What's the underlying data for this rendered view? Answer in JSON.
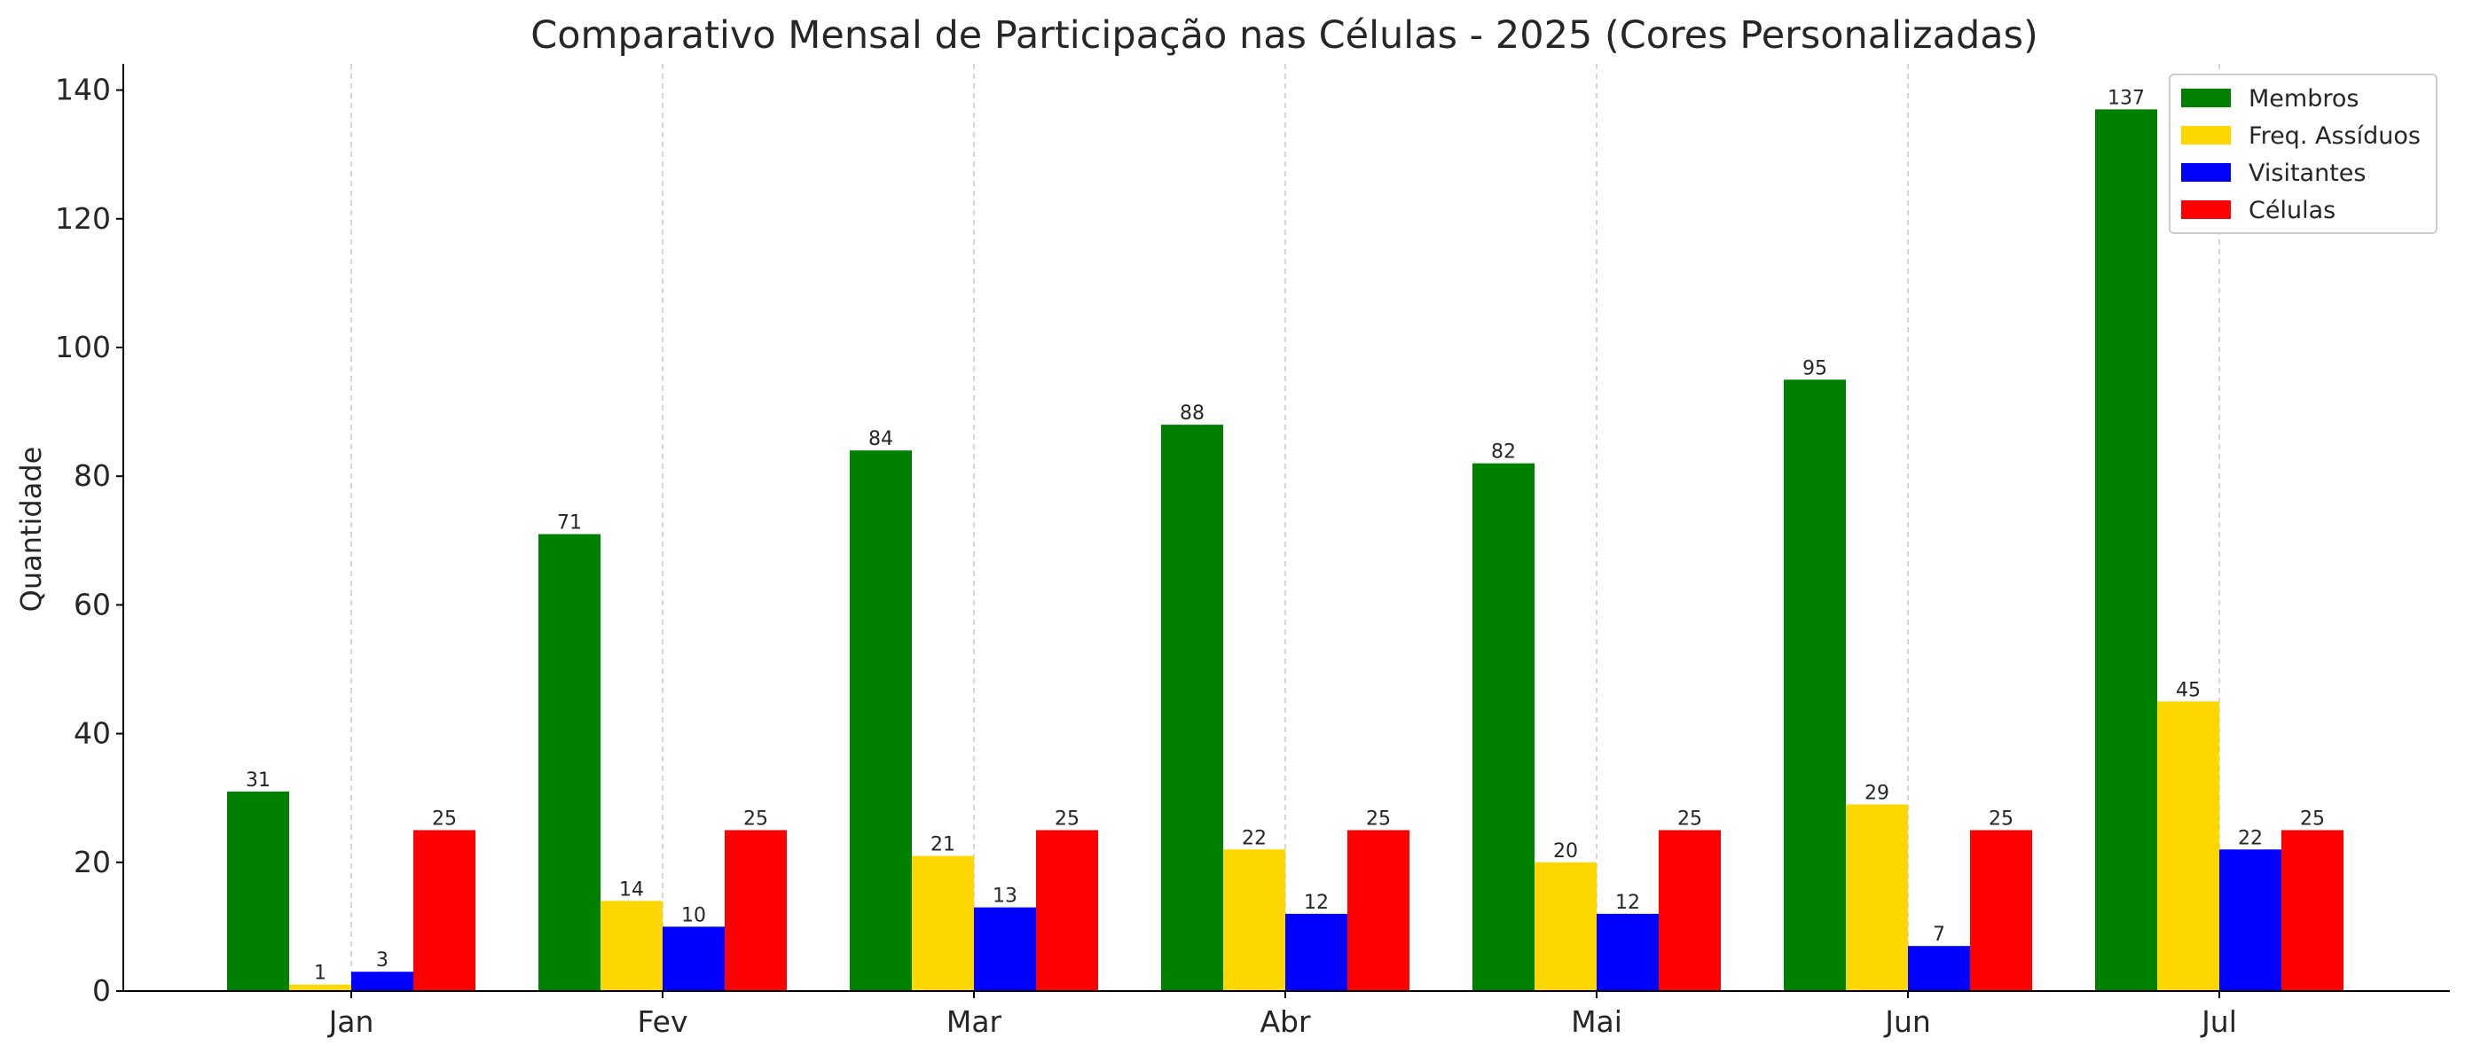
{
  "chart_data": {
    "type": "bar",
    "title": "Comparativo Mensal de Participação nas Células - 2025 (Cores Personalizadas)",
    "xlabel": "",
    "ylabel": "Quantidade",
    "categories": [
      "Jan",
      "Fev",
      "Mar",
      "Abr",
      "Mai",
      "Jun",
      "Jul"
    ],
    "series": [
      {
        "name": "Membros",
        "color": "#008000",
        "values": [
          31,
          71,
          84,
          88,
          82,
          95,
          137
        ]
      },
      {
        "name": "Freq. Assíduos",
        "color": "#FFD700",
        "values": [
          1,
          14,
          21,
          22,
          20,
          29,
          45
        ]
      },
      {
        "name": "Visitantes",
        "color": "#0000FF",
        "values": [
          3,
          10,
          13,
          12,
          12,
          7,
          22
        ]
      },
      {
        "name": "Células",
        "color": "#FF0000",
        "values": [
          25,
          25,
          25,
          25,
          25,
          25,
          25
        ]
      }
    ],
    "ylim": [
      0,
      144
    ],
    "yticks": [
      0,
      20,
      40,
      60,
      80,
      100,
      120,
      140
    ],
    "grid": "vertical dashed at categories",
    "legend_position": "top-right"
  }
}
